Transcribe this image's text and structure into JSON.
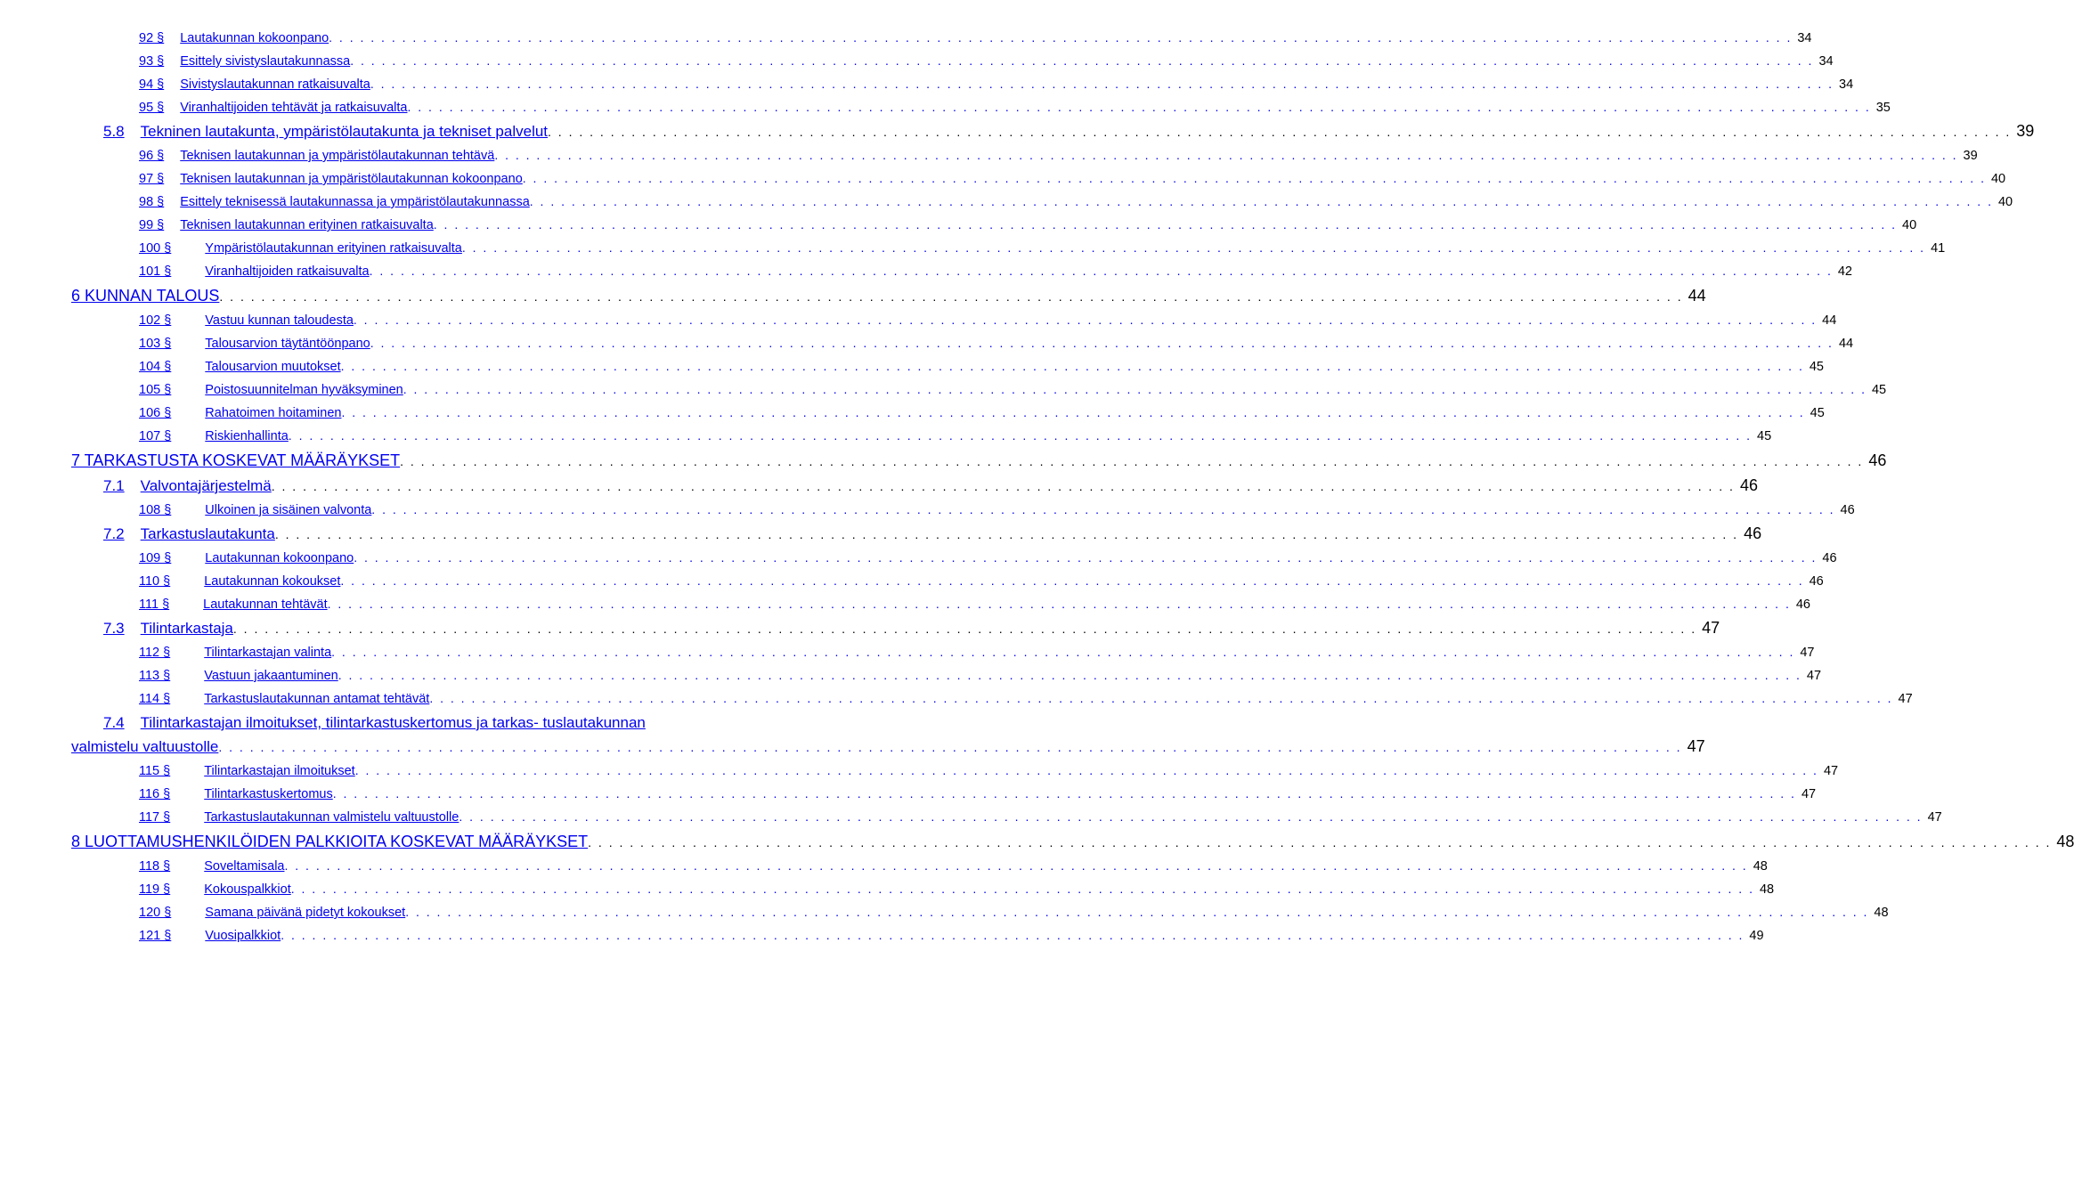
{
  "colors": {
    "link": "#0000ee",
    "text": "#000000",
    "background": "#ffffff"
  },
  "fonts": {
    "family": "Arial, Helvetica, sans-serif",
    "size_h1": 18,
    "size_h2": 17,
    "size_item": 14.5
  },
  "entries": [
    {
      "level": "item",
      "indent": "indent2",
      "num": "92 §",
      "title": "Lautakunnan kokoonpano",
      "page": "34",
      "link": true
    },
    {
      "level": "item",
      "indent": "indent2",
      "num": "93 §",
      "title": "Esittely sivistyslautakunnassa",
      "page": "34",
      "link": true
    },
    {
      "level": "item",
      "indent": "indent2",
      "num": "94 §",
      "title": "Sivistyslautakunnan ratkaisuvalta",
      "page": "34",
      "link": true
    },
    {
      "level": "item",
      "indent": "indent2",
      "num": "95 §",
      "title": "Viranhaltijoiden tehtävät ja ratkaisuvalta",
      "page": "35",
      "link": true
    },
    {
      "level": "h2",
      "indent": "indent1",
      "num": "5.8",
      "title": "Tekninen lautakunta, ympäristölautakunta ja tekniset palvelut",
      "page": "39",
      "link": true
    },
    {
      "level": "item",
      "indent": "indent2",
      "num": "96 §",
      "title": "Teknisen lautakunnan ja ympäristölautakunnan tehtävä",
      "page": "39",
      "link": true
    },
    {
      "level": "item",
      "indent": "indent2",
      "num": "97 §",
      "title": "Teknisen lautakunnan ja ympäristölautakunnan kokoonpano",
      "page": "40",
      "link": true
    },
    {
      "level": "item",
      "indent": "indent2",
      "num": "98 §",
      "title": "Esittely teknisessä lautakunnassa ja ympäristölautakunnassa",
      "page": "40",
      "link": true
    },
    {
      "level": "item",
      "indent": "indent2",
      "num": "99 §",
      "title": "Teknisen lautakunnan erityinen ratkaisuvalta",
      "page": "40",
      "link": true
    },
    {
      "level": "item",
      "indent": "indent2",
      "num": "100 §",
      "wide": true,
      "title": "Ympäristölautakunnan erityinen ratkaisuvalta",
      "page": "41",
      "link": true
    },
    {
      "level": "item",
      "indent": "indent2",
      "num": "101 §",
      "wide": true,
      "title": "Viranhaltijoiden ratkaisuvalta",
      "page": "42",
      "link": true
    },
    {
      "level": "h1",
      "indent": "indent0",
      "num": "",
      "title": "6 KUNNAN TALOUS",
      "page": "44",
      "link": true
    },
    {
      "level": "item",
      "indent": "indent2",
      "num": "102 §",
      "wide": true,
      "title": "Vastuu kunnan taloudesta",
      "page": "44",
      "link": true
    },
    {
      "level": "item",
      "indent": "indent2",
      "num": "103 §",
      "wide": true,
      "title": "Talousarvion täytäntöönpano",
      "page": "44",
      "link": true
    },
    {
      "level": "item",
      "indent": "indent2",
      "num": "104 §",
      "wide": true,
      "title": "Talousarvion muutokset",
      "page": "45",
      "link": true
    },
    {
      "level": "item",
      "indent": "indent2",
      "num": "105 §",
      "wide": true,
      "title": "Poistosuunnitelman hyväksyminen",
      "page": "45",
      "link": true
    },
    {
      "level": "item",
      "indent": "indent2",
      "num": "106 §",
      "wide": true,
      "title": "Rahatoimen hoitaminen",
      "page": "45",
      "link": true
    },
    {
      "level": "item",
      "indent": "indent2",
      "num": "107 §",
      "wide": true,
      "title": "Riskienhallinta",
      "page": "45",
      "link": true
    },
    {
      "level": "h1",
      "indent": "indent0",
      "num": "",
      "title": "7 TARKASTUSTA KOSKEVAT MÄÄRÄYKSET",
      "page": "46",
      "link": true
    },
    {
      "level": "h2",
      "indent": "indent1",
      "num": "7.1",
      "title": "Valvontajärjestelmä",
      "page": "46",
      "link": true
    },
    {
      "level": "item",
      "indent": "indent2",
      "num": "108 §",
      "wide": true,
      "title": "Ulkoinen ja sisäinen valvonta",
      "page": "46",
      "link": true
    },
    {
      "level": "h2",
      "indent": "indent1",
      "num": "7.2",
      "title": "Tarkastuslautakunta",
      "page": "46",
      "link": true
    },
    {
      "level": "item",
      "indent": "indent2",
      "num": "109 §",
      "wide": true,
      "title": "Lautakunnan kokoonpano",
      "page": "46",
      "link": true
    },
    {
      "level": "item",
      "indent": "indent2",
      "num": "110 §",
      "wide": true,
      "title": "Lautakunnan kokoukset",
      "page": "46",
      "link": true
    },
    {
      "level": "item",
      "indent": "indent2",
      "num": "111 §",
      "wide": true,
      "title": "Lautakunnan tehtävät",
      "page": "46",
      "link": true
    },
    {
      "level": "h2",
      "indent": "indent1",
      "num": "7.3",
      "title": "Tilintarkastaja",
      "page": "47",
      "link": true
    },
    {
      "level": "item",
      "indent": "indent2",
      "num": "112 §",
      "wide": true,
      "title": "Tilintarkastajan valinta",
      "page": "47",
      "link": true
    },
    {
      "level": "item",
      "indent": "indent2",
      "num": "113 §",
      "wide": true,
      "title": "Vastuun jakaantuminen",
      "page": "47",
      "link": true
    },
    {
      "level": "item",
      "indent": "indent2",
      "num": "114 §",
      "wide": true,
      "title": "Tarkastuslautakunnan antamat tehtävät",
      "page": "47",
      "link": true
    },
    {
      "level": "h2wrap",
      "indent": "indent1",
      "num": "7.4",
      "title_line1": "Tilintarkastajan ilmoitukset, tilintarkastuskertomus ja tarkas- tuslautakunnan",
      "title_line2": "valmistelu valtuustolle",
      "page": "47",
      "link": true
    },
    {
      "level": "item",
      "indent": "indent2",
      "num": "115 §",
      "wide": true,
      "title": "Tilintarkastajan ilmoitukset",
      "page": "47",
      "link": true
    },
    {
      "level": "item",
      "indent": "indent2",
      "num": "116 §",
      "wide": true,
      "title": "Tilintarkastuskertomus",
      "page": "47",
      "link": true
    },
    {
      "level": "item",
      "indent": "indent2",
      "num": "117 §",
      "wide": true,
      "title": "Tarkastuslautakunnan valmistelu valtuustolle",
      "page": "47",
      "link": true
    },
    {
      "level": "h1",
      "indent": "indent0",
      "num": "",
      "title": "8 LUOTTAMUSHENKILÖIDEN PALKKIOITA KOSKEVAT MÄÄRÄYKSET",
      "page": "48",
      "link": true
    },
    {
      "level": "item",
      "indent": "indent2",
      "num": "118 §",
      "wide": true,
      "title": "Soveltamisala",
      "page": "48",
      "link": true
    },
    {
      "level": "item",
      "indent": "indent2",
      "num": "119 §",
      "wide": true,
      "title": "Kokouspalkkiot",
      "page": "48",
      "link": true
    },
    {
      "level": "item",
      "indent": "indent2",
      "num": "120 §",
      "wide": true,
      "title": "Samana päivänä pidetyt kokoukset",
      "page": "48",
      "link": true
    },
    {
      "level": "item",
      "indent": "indent2",
      "num": "121 §",
      "wide": true,
      "title": "Vuosipalkkiot",
      "page": "49",
      "link": true
    }
  ]
}
